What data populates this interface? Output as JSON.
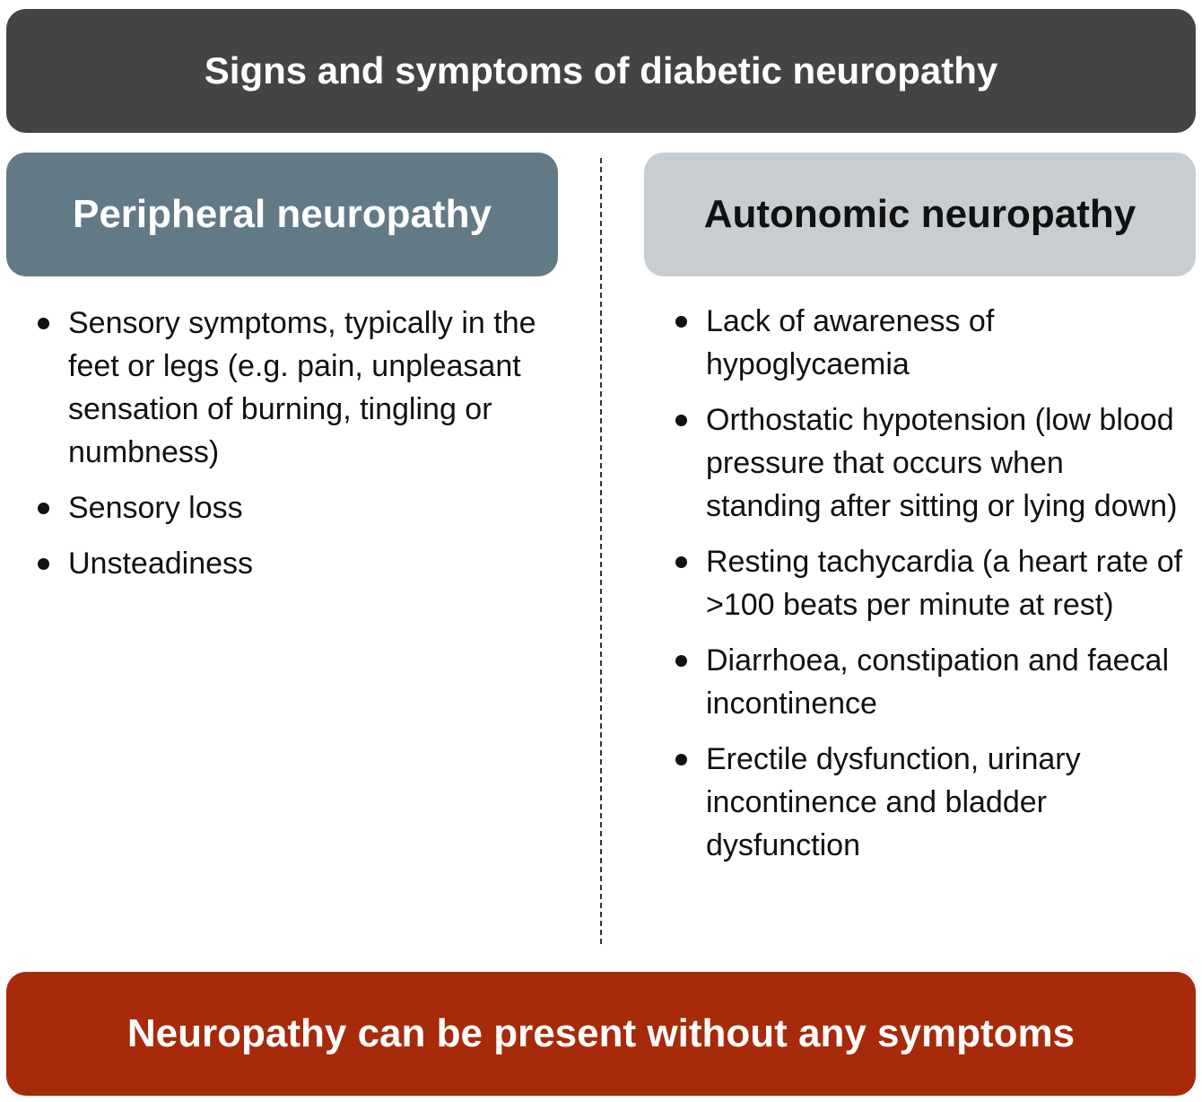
{
  "title": "Signs and symptoms of diabetic neuropathy",
  "peripheral": {
    "heading": "Peripheral neuropathy",
    "items": [
      "Sensory symptoms, typically in the feet or legs (e.g. pain, unpleasant sensation of burning, tingling or numbness)",
      "Sensory loss",
      "Unsteadiness"
    ]
  },
  "autonomic": {
    "heading": "Autonomic neuropathy",
    "items": [
      "Lack of awareness of hypoglycaemia",
      "Orthostatic hypotension (low blood pressure that occurs when standing after sitting or lying down)",
      "Resting tachycardia (a heart rate of >100 beats per minute at rest)",
      "Diarrhoea, constipation and faecal incontinence",
      "Erectile dysfunction, urinary incontinence and bladder dysfunction"
    ]
  },
  "footer": "Neuropathy can be present without any symptoms",
  "colors": {
    "title_bg": "#454443",
    "peripheral_bg": "#627a86",
    "autonomic_bg": "#c7cdd0",
    "footer_bg": "#a72a0a"
  }
}
